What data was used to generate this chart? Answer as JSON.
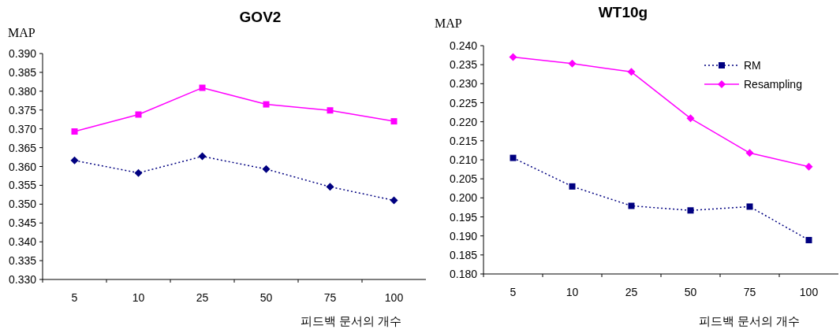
{
  "chart_data": [
    {
      "type": "line",
      "title": "GOV2",
      "ylabel": "MAP",
      "xlabel": "피드백 문서의 개수",
      "categories": [
        "5",
        "10",
        "25",
        "50",
        "75",
        "100"
      ],
      "series": [
        {
          "color": "#ff00ff",
          "marker": "square",
          "line_style": "solid",
          "values": [
            0.3693,
            0.3738,
            0.3809,
            0.3765,
            0.3749,
            0.372
          ]
        },
        {
          "color": "#000080",
          "marker": "diamond",
          "line_style": "dotted",
          "values": [
            0.3616,
            0.3583,
            0.3627,
            0.3593,
            0.3546,
            0.351
          ]
        }
      ],
      "ylim": [
        0.33,
        0.39
      ],
      "yticks": [
        {
          "value": 0.33,
          "label": "0.330"
        },
        {
          "value": 0.335,
          "label": "0.335"
        },
        {
          "value": 0.34,
          "label": "0.340"
        },
        {
          "value": 0.345,
          "label": "0.345"
        },
        {
          "value": 0.35,
          "label": "0.350"
        },
        {
          "value": 0.355,
          "label": "0.355"
        },
        {
          "value": 0.36,
          "label": "0.360"
        },
        {
          "value": 0.365,
          "label": "0.365"
        },
        {
          "value": 0.37,
          "label": "0.370"
        },
        {
          "value": 0.375,
          "label": "0.375"
        },
        {
          "value": 0.38,
          "label": "0.380"
        },
        {
          "value": 0.385,
          "label": "0.385"
        },
        {
          "value": 0.39,
          "label": "0.390"
        }
      ],
      "grid": false,
      "legend": false
    },
    {
      "type": "line",
      "title": "WT10g",
      "ylabel": "MAP",
      "xlabel": "피드백 문서의 개수",
      "categories": [
        "5",
        "10",
        "25",
        "50",
        "75",
        "100"
      ],
      "series": [
        {
          "name": "RM",
          "color": "#000080",
          "marker": "square",
          "line_style": "dotted",
          "values": [
            0.2105,
            0.203,
            0.1979,
            0.1967,
            0.1977,
            0.1889
          ]
        },
        {
          "name": "Resampling",
          "color": "#ff00ff",
          "marker": "diamond",
          "line_style": "solid",
          "values": [
            0.237,
            0.2353,
            0.2331,
            0.2209,
            0.2118,
            0.2082
          ]
        }
      ],
      "ylim": [
        0.18,
        0.24
      ],
      "yticks": [
        {
          "value": 0.18,
          "label": "0.180"
        },
        {
          "value": 0.185,
          "label": "0.185"
        },
        {
          "value": 0.19,
          "label": "0.190"
        },
        {
          "value": 0.195,
          "label": "0.195"
        },
        {
          "value": 0.2,
          "label": "0.200"
        },
        {
          "value": 0.205,
          "label": "0.205"
        },
        {
          "value": 0.21,
          "label": "0.210"
        },
        {
          "value": 0.215,
          "label": "0.215"
        },
        {
          "value": 0.22,
          "label": "0.220"
        },
        {
          "value": 0.225,
          "label": "0.225"
        },
        {
          "value": 0.23,
          "label": "0.230"
        },
        {
          "value": 0.235,
          "label": "0.235"
        },
        {
          "value": 0.24,
          "label": "0.240"
        }
      ],
      "grid": false,
      "legend": "top right"
    }
  ]
}
